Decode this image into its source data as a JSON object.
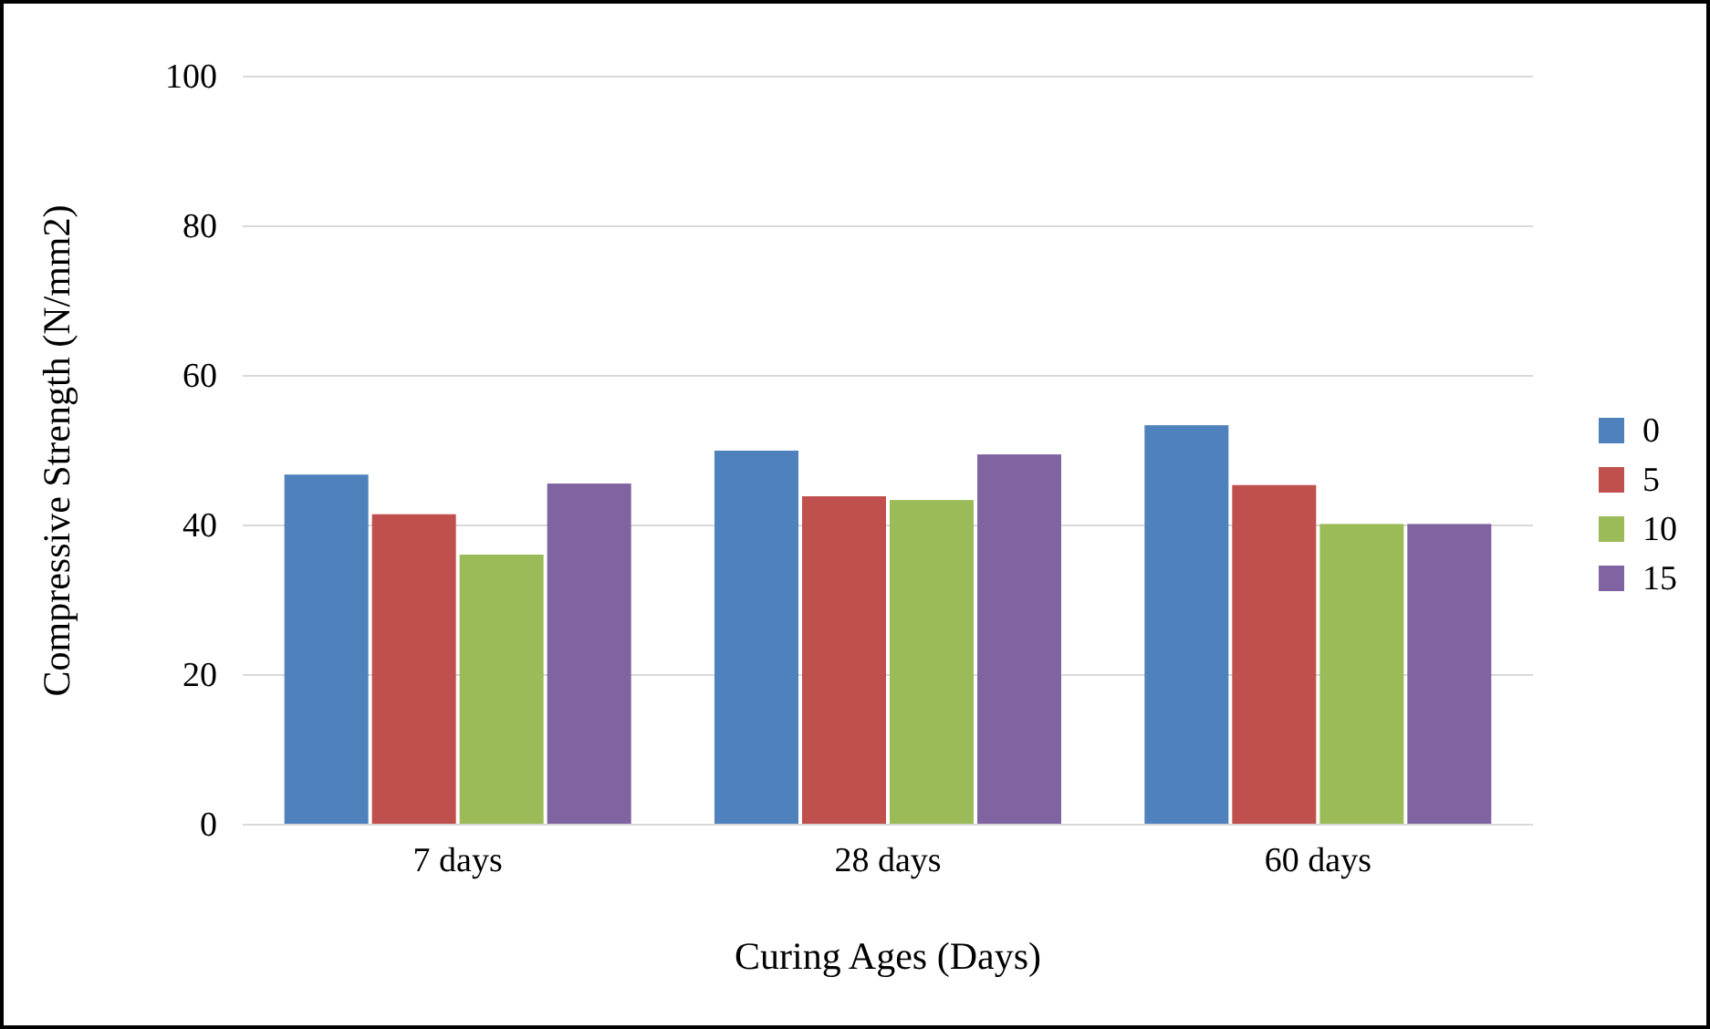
{
  "chart_data": {
    "type": "bar",
    "xlabel": "Curing Ages (Days)",
    "ylabel": "Compressive Strength (N/mm2)",
    "categories": [
      "7 days",
      "28 days",
      "60 days"
    ],
    "series": [
      {
        "name": "0",
        "color": "#4f81bd",
        "values": [
          46.8,
          50.0,
          53.4
        ]
      },
      {
        "name": "5",
        "color": "#c0504d",
        "values": [
          41.5,
          43.9,
          45.4
        ]
      },
      {
        "name": "10",
        "color": "#9bbb59",
        "values": [
          36.1,
          43.4,
          40.2
        ]
      },
      {
        "name": "15",
        "color": "#8064a2",
        "values": [
          45.6,
          49.5,
          40.2
        ]
      }
    ],
    "ylim": [
      0,
      100
    ],
    "yticks": [
      0,
      20,
      40,
      60,
      80,
      100
    ],
    "grid": "y",
    "legend": "right"
  }
}
